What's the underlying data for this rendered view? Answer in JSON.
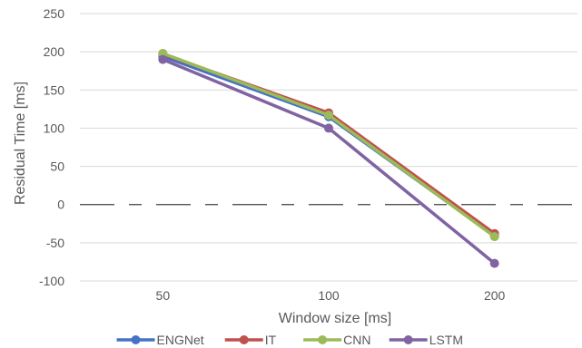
{
  "chart_data": {
    "type": "line",
    "categories": [
      "50",
      "100",
      "200"
    ],
    "series": [
      {
        "name": "ENGNet",
        "values": [
          194,
          115,
          -41
        ],
        "color": "#4472c4"
      },
      {
        "name": "IT",
        "values": [
          197,
          120,
          -38
        ],
        "color": "#c0504d"
      },
      {
        "name": "CNN",
        "values": [
          198,
          117,
          -42
        ],
        "color": "#9bbb59"
      },
      {
        "name": "LSTM",
        "values": [
          190,
          100,
          -77
        ],
        "color": "#8064a2"
      }
    ],
    "xlabel": "Window size [ms]",
    "ylabel": "Residual Time [ms]",
    "ylim": [
      -100,
      250
    ],
    "yticks": [
      -100,
      -50,
      0,
      50,
      100,
      150,
      200,
      250
    ],
    "grid": true,
    "legend_position": "bottom"
  }
}
